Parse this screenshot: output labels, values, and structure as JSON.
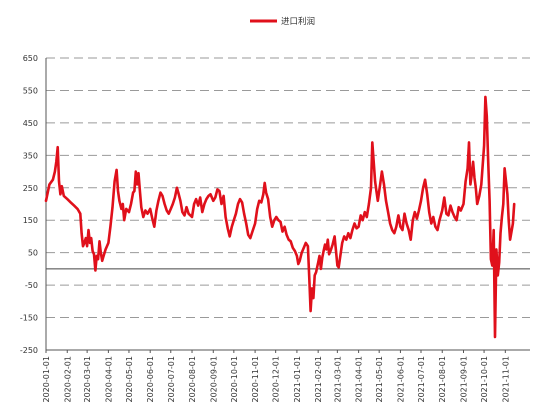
{
  "chart_data": {
    "type": "line",
    "title": "",
    "xlabel": "",
    "ylabel": "",
    "legend": {
      "position": "top-center"
    },
    "grid": {
      "horizontal": true,
      "style": "dashed"
    },
    "ylim": [
      -250,
      650
    ],
    "yticks": [
      -250,
      -150,
      -50,
      50,
      150,
      250,
      350,
      450,
      550,
      650
    ],
    "ytick_labels": [
      "-250",
      "-150",
      "-50",
      "50",
      "150",
      "250",
      "350",
      "450",
      "550",
      "650"
    ],
    "xlim": [
      "2020-01-01",
      "2021-12-07"
    ],
    "xtick_labels": [
      "2020-01-01",
      "2020-02-01",
      "2020-03-01",
      "2020-04-01",
      "2020-05-01",
      "2020-06-01",
      "2020-07-01",
      "2020-08-01",
      "2020-09-01",
      "2020-10-01",
      "2020-11-01",
      "2020-12-01",
      "2021-01-01",
      "2021-02-01",
      "2021-03-01",
      "2021-04-01",
      "2021-05-01",
      "2021-06-01",
      "2021-07-01",
      "2021-08-01",
      "2021-09-01",
      "2021-10-01",
      "2021-11-01"
    ],
    "series": [
      {
        "name": "进口利润",
        "color": "#e0101b",
        "points": [
          [
            "2020-01-01",
            210
          ],
          [
            "2020-01-06",
            260
          ],
          [
            "2020-01-11",
            275
          ],
          [
            "2020-01-14",
            300
          ],
          [
            "2020-01-16",
            330
          ],
          [
            "2020-01-18",
            375
          ],
          [
            "2020-01-20",
            270
          ],
          [
            "2020-01-22",
            230
          ],
          [
            "2020-01-24",
            255
          ],
          [
            "2020-01-27",
            225
          ],
          [
            "2020-02-01",
            215
          ],
          [
            "2020-02-06",
            205
          ],
          [
            "2020-02-11",
            195
          ],
          [
            "2020-02-16",
            185
          ],
          [
            "2020-02-20",
            170
          ],
          [
            "2020-02-22",
            110
          ],
          [
            "2020-02-24",
            70
          ],
          [
            "2020-02-26",
            80
          ],
          [
            "2020-02-28",
            95
          ],
          [
            "2020-03-01",
            70
          ],
          [
            "2020-03-03",
            120
          ],
          [
            "2020-03-05",
            80
          ],
          [
            "2020-03-07",
            95
          ],
          [
            "2020-03-09",
            55
          ],
          [
            "2020-03-11",
            45
          ],
          [
            "2020-03-13",
            -5
          ],
          [
            "2020-03-15",
            40
          ],
          [
            "2020-03-17",
            30
          ],
          [
            "2020-03-19",
            85
          ],
          [
            "2020-03-21",
            50
          ],
          [
            "2020-03-23",
            25
          ],
          [
            "2020-03-25",
            40
          ],
          [
            "2020-03-28",
            60
          ],
          [
            "2020-04-01",
            80
          ],
          [
            "2020-04-04",
            130
          ],
          [
            "2020-04-07",
            190
          ],
          [
            "2020-04-10",
            270
          ],
          [
            "2020-04-13",
            305
          ],
          [
            "2020-04-15",
            240
          ],
          [
            "2020-04-17",
            210
          ],
          [
            "2020-04-20",
            185
          ],
          [
            "2020-04-22",
            200
          ],
          [
            "2020-04-24",
            150
          ],
          [
            "2020-04-27",
            185
          ],
          [
            "2020-05-01",
            175
          ],
          [
            "2020-05-04",
            200
          ],
          [
            "2020-05-07",
            235
          ],
          [
            "2020-05-09",
            240
          ],
          [
            "2020-05-11",
            300
          ],
          [
            "2020-05-13",
            260
          ],
          [
            "2020-05-15",
            295
          ],
          [
            "2020-05-17",
            240
          ],
          [
            "2020-05-19",
            190
          ],
          [
            "2020-05-22",
            160
          ],
          [
            "2020-05-25",
            180
          ],
          [
            "2020-05-28",
            170
          ],
          [
            "2020-06-01",
            185
          ],
          [
            "2020-06-04",
            155
          ],
          [
            "2020-06-07",
            130
          ],
          [
            "2020-06-10",
            180
          ],
          [
            "2020-06-13",
            210
          ],
          [
            "2020-06-16",
            235
          ],
          [
            "2020-06-19",
            225
          ],
          [
            "2020-06-22",
            200
          ],
          [
            "2020-06-25",
            180
          ],
          [
            "2020-06-28",
            170
          ],
          [
            "2020-07-01",
            185
          ],
          [
            "2020-07-04",
            200
          ],
          [
            "2020-07-07",
            220
          ],
          [
            "2020-07-10",
            250
          ],
          [
            "2020-07-12",
            235
          ],
          [
            "2020-07-15",
            210
          ],
          [
            "2020-07-18",
            175
          ],
          [
            "2020-07-21",
            165
          ],
          [
            "2020-07-24",
            190
          ],
          [
            "2020-07-27",
            170
          ],
          [
            "2020-08-01",
            160
          ],
          [
            "2020-08-04",
            200
          ],
          [
            "2020-08-07",
            215
          ],
          [
            "2020-08-10",
            195
          ],
          [
            "2020-08-13",
            220
          ],
          [
            "2020-08-16",
            175
          ],
          [
            "2020-08-19",
            200
          ],
          [
            "2020-08-22",
            215
          ],
          [
            "2020-08-25",
            225
          ],
          [
            "2020-08-28",
            230
          ],
          [
            "2020-09-01",
            210
          ],
          [
            "2020-09-04",
            220
          ],
          [
            "2020-09-07",
            245
          ],
          [
            "2020-09-10",
            240
          ],
          [
            "2020-09-13",
            200
          ],
          [
            "2020-09-16",
            225
          ],
          [
            "2020-09-19",
            160
          ],
          [
            "2020-09-22",
            125
          ],
          [
            "2020-09-25",
            100
          ],
          [
            "2020-09-28",
            130
          ],
          [
            "2020-10-01",
            150
          ],
          [
            "2020-10-04",
            170
          ],
          [
            "2020-10-07",
            200
          ],
          [
            "2020-10-10",
            215
          ],
          [
            "2020-10-13",
            205
          ],
          [
            "2020-10-16",
            170
          ],
          [
            "2020-10-19",
            140
          ],
          [
            "2020-10-22",
            105
          ],
          [
            "2020-10-25",
            95
          ],
          [
            "2020-10-28",
            115
          ],
          [
            "2020-11-01",
            140
          ],
          [
            "2020-11-04",
            185
          ],
          [
            "2020-11-07",
            210
          ],
          [
            "2020-11-10",
            205
          ],
          [
            "2020-11-13",
            230
          ],
          [
            "2020-11-15",
            265
          ],
          [
            "2020-11-17",
            235
          ],
          [
            "2020-11-20",
            215
          ],
          [
            "2020-11-23",
            160
          ],
          [
            "2020-11-26",
            130
          ],
          [
            "2020-11-29",
            150
          ],
          [
            "2020-12-02",
            160
          ],
          [
            "2020-12-05",
            150
          ],
          [
            "2020-12-08",
            145
          ],
          [
            "2020-12-11",
            115
          ],
          [
            "2020-12-14",
            130
          ],
          [
            "2020-12-17",
            105
          ],
          [
            "2020-12-20",
            90
          ],
          [
            "2020-12-23",
            85
          ],
          [
            "2020-12-26",
            65
          ],
          [
            "2020-12-29",
            55
          ],
          [
            "2021-01-01",
            40
          ],
          [
            "2021-01-03",
            15
          ],
          [
            "2021-01-05",
            25
          ],
          [
            "2021-01-08",
            50
          ],
          [
            "2021-01-11",
            65
          ],
          [
            "2021-01-14",
            80
          ],
          [
            "2021-01-17",
            70
          ],
          [
            "2021-01-19",
            -30
          ],
          [
            "2021-01-21",
            -130
          ],
          [
            "2021-01-23",
            -60
          ],
          [
            "2021-01-25",
            -90
          ],
          [
            "2021-01-27",
            -20
          ],
          [
            "2021-01-29",
            -10
          ],
          [
            "2021-02-01",
            20
          ],
          [
            "2021-02-03",
            40
          ],
          [
            "2021-02-05",
            0
          ],
          [
            "2021-02-07",
            35
          ],
          [
            "2021-02-09",
            55
          ],
          [
            "2021-02-11",
            75
          ],
          [
            "2021-02-13",
            60
          ],
          [
            "2021-02-15",
            90
          ],
          [
            "2021-02-17",
            45
          ],
          [
            "2021-02-19",
            55
          ],
          [
            "2021-02-22",
            75
          ],
          [
            "2021-02-25",
            100
          ],
          [
            "2021-02-27",
            55
          ],
          [
            "2021-03-01",
            10
          ],
          [
            "2021-03-03",
            5
          ],
          [
            "2021-03-05",
            35
          ],
          [
            "2021-03-08",
            80
          ],
          [
            "2021-03-11",
            100
          ],
          [
            "2021-03-14",
            90
          ],
          [
            "2021-03-17",
            110
          ],
          [
            "2021-03-20",
            95
          ],
          [
            "2021-03-23",
            120
          ],
          [
            "2021-03-26",
            140
          ],
          [
            "2021-03-29",
            125
          ],
          [
            "2021-04-01",
            130
          ],
          [
            "2021-04-04",
            165
          ],
          [
            "2021-04-07",
            150
          ],
          [
            "2021-04-10",
            175
          ],
          [
            "2021-04-13",
            160
          ],
          [
            "2021-04-16",
            200
          ],
          [
            "2021-04-19",
            250
          ],
          [
            "2021-04-21",
            390
          ],
          [
            "2021-04-23",
            330
          ],
          [
            "2021-04-25",
            270
          ],
          [
            "2021-04-27",
            240
          ],
          [
            "2021-04-29",
            210
          ],
          [
            "2021-05-02",
            255
          ],
          [
            "2021-05-05",
            300
          ],
          [
            "2021-05-08",
            260
          ],
          [
            "2021-05-11",
            210
          ],
          [
            "2021-05-14",
            175
          ],
          [
            "2021-05-17",
            140
          ],
          [
            "2021-05-20",
            120
          ],
          [
            "2021-05-23",
            110
          ],
          [
            "2021-05-26",
            130
          ],
          [
            "2021-05-29",
            165
          ],
          [
            "2021-06-01",
            130
          ],
          [
            "2021-06-04",
            120
          ],
          [
            "2021-06-07",
            170
          ],
          [
            "2021-06-10",
            140
          ],
          [
            "2021-06-13",
            120
          ],
          [
            "2021-06-16",
            90
          ],
          [
            "2021-06-19",
            150
          ],
          [
            "2021-06-22",
            175
          ],
          [
            "2021-06-25",
            155
          ],
          [
            "2021-06-28",
            180
          ],
          [
            "2021-07-01",
            210
          ],
          [
            "2021-07-04",
            250
          ],
          [
            "2021-07-07",
            275
          ],
          [
            "2021-07-10",
            230
          ],
          [
            "2021-07-13",
            175
          ],
          [
            "2021-07-16",
            140
          ],
          [
            "2021-07-19",
            160
          ],
          [
            "2021-07-22",
            130
          ],
          [
            "2021-07-25",
            120
          ],
          [
            "2021-07-28",
            150
          ],
          [
            "2021-08-01",
            180
          ],
          [
            "2021-08-04",
            220
          ],
          [
            "2021-08-07",
            170
          ],
          [
            "2021-08-10",
            165
          ],
          [
            "2021-08-13",
            195
          ],
          [
            "2021-08-16",
            175
          ],
          [
            "2021-08-19",
            160
          ],
          [
            "2021-08-22",
            150
          ],
          [
            "2021-08-25",
            190
          ],
          [
            "2021-08-28",
            180
          ],
          [
            "2021-09-01",
            200
          ],
          [
            "2021-09-04",
            270
          ],
          [
            "2021-09-07",
            310
          ],
          [
            "2021-09-09",
            390
          ],
          [
            "2021-09-11",
            260
          ],
          [
            "2021-09-13",
            290
          ],
          [
            "2021-09-15",
            330
          ],
          [
            "2021-09-17",
            280
          ],
          [
            "2021-09-19",
            250
          ],
          [
            "2021-09-21",
            200
          ],
          [
            "2021-09-24",
            225
          ],
          [
            "2021-09-27",
            260
          ],
          [
            "2021-10-01",
            380
          ],
          [
            "2021-10-03",
            530
          ],
          [
            "2021-10-05",
            470
          ],
          [
            "2021-10-07",
            330
          ],
          [
            "2021-10-09",
            210
          ],
          [
            "2021-10-11",
            30
          ],
          [
            "2021-10-13",
            10
          ],
          [
            "2021-10-15",
            120
          ],
          [
            "2021-10-17",
            -210
          ],
          [
            "2021-10-19",
            60
          ],
          [
            "2021-10-21",
            -20
          ],
          [
            "2021-10-23",
            20
          ],
          [
            "2021-10-25",
            110
          ],
          [
            "2021-10-27",
            160
          ],
          [
            "2021-10-29",
            200
          ],
          [
            "2021-10-31",
            310
          ],
          [
            "2021-11-02",
            270
          ],
          [
            "2021-11-04",
            230
          ],
          [
            "2021-11-06",
            150
          ],
          [
            "2021-11-08",
            90
          ],
          [
            "2021-11-10",
            115
          ],
          [
            "2021-11-12",
            140
          ],
          [
            "2021-11-14",
            200
          ]
        ]
      }
    ]
  }
}
